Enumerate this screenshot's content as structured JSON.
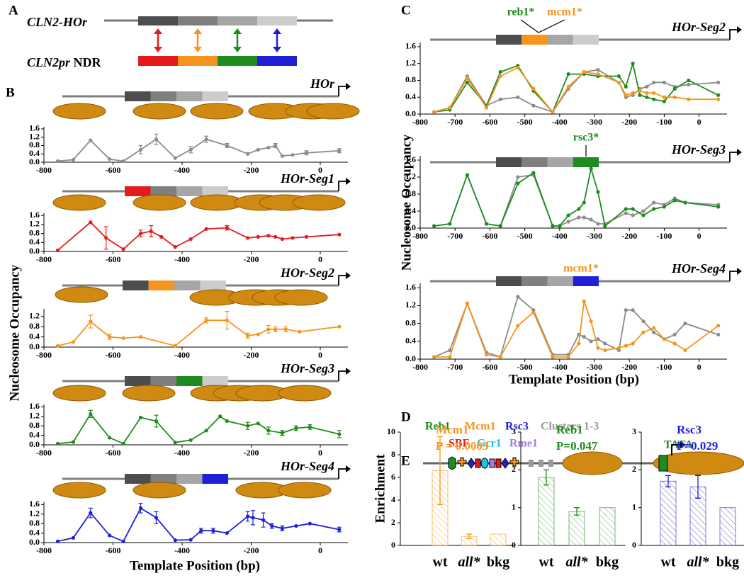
{
  "panel_labels": [
    "A",
    "B",
    "C",
    "D",
    "E"
  ],
  "panel_a": {
    "top_label": "CLN2-HOr",
    "bottom_label_italic": "CLN2pr",
    "bottom_label": "NDR"
  },
  "panel_b": {
    "ylabel": "Nucleosome Occupancy",
    "xlabel": "Template Position (bp)"
  },
  "panel_c": {
    "ylabel": "Nucleosome Occupancy",
    "xlabel": "Template Position (bp)"
  },
  "panel_d": {
    "factors": [
      {
        "text": "Reb1",
        "color": "#1e8c1e"
      },
      {
        "text": "Mcm1",
        "color": "#f7941d"
      },
      {
        "text": "Rsc3",
        "color": "#1f1fd6"
      },
      {
        "text": "Clusters 1-3",
        "color": "#999999"
      },
      {
        "text": "SBF",
        "color": "#e41a1c"
      },
      {
        "text": "Gcr1",
        "color": "#19c3e6"
      },
      {
        "text": "Rme1",
        "color": "#a07de0"
      }
    ],
    "tata": "TATA"
  },
  "chart_data": [
    {
      "type": "line",
      "title": "HOr",
      "replaced_color": null,
      "xlim": [
        -800,
        80
      ],
      "ylim": [
        0,
        1.7
      ],
      "xticks": [
        -800,
        -600,
        -400,
        -200,
        0
      ],
      "yticks": [
        {
          "value": 0,
          "label": "0.0"
        },
        0.4,
        0.8,
        1.2,
        1.6
      ],
      "x": [
        -760,
        -715,
        -665,
        -610,
        -570,
        -520,
        -475,
        -420,
        -375,
        -330,
        -270,
        -210,
        -180,
        -150,
        -130,
        -110,
        -80,
        -40,
        55
      ],
      "series": [
        {
          "color": "#8c8c8c",
          "values": [
            0.05,
            0.12,
            1.05,
            0.15,
            0.05,
            0.6,
            1.1,
            0.2,
            0.6,
            1.1,
            0.8,
            0.4,
            0.6,
            0.7,
            0.8,
            0.3,
            0.35,
            0.45,
            0.55
          ],
          "errors": [
            null,
            null,
            null,
            null,
            null,
            0.2,
            0.25,
            null,
            0.15,
            0.15,
            0.1,
            null,
            null,
            null,
            0.1,
            null,
            null,
            0.1,
            0.1
          ]
        }
      ]
    },
    {
      "type": "line",
      "title": "HOr-Seg1",
      "replaced_color": "#e41a1c",
      "xlim": [
        -800,
        80
      ],
      "ylim": [
        0,
        1.7
      ],
      "xticks": [
        -800,
        -600,
        -400,
        -200,
        0
      ],
      "yticks": [
        {
          "value": 0,
          "label": "0.0"
        },
        0.4,
        0.8,
        1.2,
        1.6
      ],
      "x": [
        -760,
        -665,
        -620,
        -570,
        -520,
        -490,
        -460,
        -420,
        -375,
        -330,
        -270,
        -210,
        -180,
        -150,
        -130,
        -110,
        -80,
        -40,
        55
      ],
      "series": [
        {
          "color": "#e41a1c",
          "values": [
            0.05,
            1.3,
            0.6,
            0.1,
            0.8,
            0.9,
            0.65,
            0.2,
            0.55,
            1.0,
            1.05,
            0.6,
            0.65,
            0.7,
            0.65,
            0.55,
            0.6,
            0.65,
            0.75
          ],
          "errors": [
            null,
            null,
            0.5,
            null,
            0.15,
            0.25,
            null,
            null,
            null,
            null,
            0.1,
            null,
            null,
            null,
            null,
            null,
            null,
            null,
            null
          ]
        }
      ]
    },
    {
      "type": "line",
      "title": "HOr-Seg2",
      "replaced_color": "#f7941d",
      "xlim": [
        -800,
        80
      ],
      "ylim": [
        0,
        1.5
      ],
      "xticks": [
        -800,
        -600,
        -400,
        -200,
        0
      ],
      "yticks": [
        {
          "value": 0,
          "label": "0.0"
        },
        0.4,
        0.8,
        1.2
      ],
      "x": [
        -760,
        -715,
        -665,
        -610,
        -570,
        -520,
        -420,
        -330,
        -270,
        -210,
        -180,
        -150,
        -130,
        -100,
        -60,
        55
      ],
      "series": [
        {
          "color": "#f7941d",
          "values": [
            0.05,
            0.2,
            1.0,
            0.4,
            0.35,
            0.4,
            0.05,
            1.05,
            1.05,
            0.45,
            0.5,
            0.7,
            0.7,
            0.7,
            0.6,
            0.8
          ],
          "errors": [
            null,
            null,
            0.25,
            0.1,
            null,
            null,
            null,
            0.1,
            0.35,
            0.1,
            null,
            0.15,
            0.1,
            0.1,
            null,
            null
          ]
        }
      ]
    },
    {
      "type": "line",
      "title": "HOr-Seg3",
      "replaced_color": "#1e8c1e",
      "xlim": [
        -800,
        80
      ],
      "ylim": [
        0,
        1.7
      ],
      "xticks": [
        -800,
        -600,
        -400,
        -200,
        0
      ],
      "yticks": [
        {
          "value": 0,
          "label": "0.0"
        },
        0.4,
        0.8,
        1.2,
        1.6
      ],
      "x": [
        -760,
        -715,
        -665,
        -610,
        -570,
        -520,
        -475,
        -420,
        -375,
        -330,
        -290,
        -270,
        -210,
        -180,
        -150,
        -110,
        -70,
        -30,
        55
      ],
      "series": [
        {
          "color": "#1e8c1e",
          "values": [
            0.05,
            0.12,
            1.3,
            0.3,
            0.05,
            1.15,
            1.0,
            0.1,
            0.2,
            0.6,
            1.2,
            1.0,
            0.8,
            0.9,
            0.6,
            0.5,
            0.7,
            0.75,
            0.45
          ],
          "errors": [
            null,
            null,
            0.15,
            null,
            null,
            null,
            0.25,
            null,
            null,
            null,
            null,
            null,
            0.15,
            null,
            0.15,
            0.1,
            0.1,
            0.1,
            0.15
          ]
        }
      ]
    },
    {
      "type": "line",
      "title": "HOr-Seg4",
      "replaced_color": "#1f1fd6",
      "xlim": [
        -800,
        80
      ],
      "ylim": [
        0,
        1.7
      ],
      "xticks": [
        -800,
        -600,
        -400,
        -200,
        0
      ],
      "yticks": [
        {
          "value": 0,
          "label": "0.0"
        },
        0.4,
        0.8,
        1.2,
        1.6
      ],
      "x": [
        -760,
        -715,
        -665,
        -610,
        -570,
        -520,
        -475,
        -420,
        -375,
        -345,
        -310,
        -270,
        -210,
        -195,
        -165,
        -140,
        -110,
        -70,
        -30,
        55
      ],
      "series": [
        {
          "color": "#1f1fd6",
          "values": [
            0.05,
            0.2,
            1.25,
            0.3,
            0.05,
            1.45,
            1.05,
            0.1,
            0.12,
            0.5,
            0.5,
            0.4,
            1.1,
            1.05,
            0.95,
            0.7,
            0.6,
            0.7,
            0.8,
            0.55
          ],
          "errors": [
            null,
            null,
            0.2,
            null,
            null,
            0.2,
            0.25,
            null,
            null,
            0.1,
            0.1,
            null,
            0.2,
            0.3,
            0.3,
            0.1,
            0.1,
            null,
            null,
            0.1
          ]
        }
      ]
    },
    {
      "type": "line",
      "title": "HOr-Seg2",
      "replaced_color": "#f7941d",
      "annotations": [
        {
          "text": "reb1*",
          "color": "#1e8c1e"
        },
        {
          "text": "mcm1*",
          "color": "#f7941d"
        }
      ],
      "xlim": [
        -800,
        80
      ],
      "ylim": [
        0,
        1.7
      ],
      "xticks": [
        -800,
        -700,
        -600,
        -500,
        -400,
        -300,
        -200,
        -100,
        0
      ],
      "yticks": [
        {
          "value": 0,
          "label": "0.0"
        },
        0.4,
        0.8,
        1.2,
        1.6
      ],
      "x": [
        -760,
        -715,
        -665,
        -610,
        -570,
        -520,
        -475,
        -420,
        -375,
        -330,
        -290,
        -230,
        -210,
        -190,
        -170,
        -150,
        -130,
        -100,
        -70,
        -30,
        55
      ],
      "series": [
        {
          "color": "#8c8c8c",
          "values": [
            0.05,
            0.15,
            0.9,
            0.2,
            0.35,
            0.4,
            0.2,
            0.05,
            0.6,
            1.0,
            1.05,
            0.75,
            0.4,
            0.45,
            0.6,
            0.65,
            0.75,
            0.75,
            0.65,
            0.7,
            0.75
          ]
        },
        {
          "color": "#1e8c1e",
          "values": [
            0.05,
            0.1,
            0.75,
            0.2,
            1.0,
            1.15,
            0.55,
            0.05,
            0.95,
            0.95,
            0.9,
            0.9,
            0.65,
            1.2,
            0.45,
            0.4,
            0.35,
            0.3,
            0.6,
            0.8,
            0.45
          ]
        },
        {
          "color": "#f7941d",
          "values": [
            0.05,
            0.15,
            0.85,
            0.15,
            0.9,
            1.1,
            0.6,
            0.05,
            0.65,
            1.0,
            0.95,
            0.75,
            0.45,
            0.5,
            0.55,
            0.5,
            0.5,
            0.4,
            0.4,
            0.35,
            0.35
          ]
        }
      ]
    },
    {
      "type": "line",
      "title": "HOr-Seg3",
      "replaced_color": "#1e8c1e",
      "annotations": [
        {
          "text": "rsc3*",
          "color": "#1e8c1e"
        }
      ],
      "xlim": [
        -800,
        80
      ],
      "ylim": [
        0,
        1.7
      ],
      "xticks": [
        -800,
        -700,
        -600,
        -500,
        -400,
        -300,
        -200,
        -100,
        0
      ],
      "yticks": [
        {
          "value": 0,
          "label": "0.0"
        },
        0.4,
        0.8,
        1.2,
        1.6
      ],
      "x": [
        -760,
        -715,
        -665,
        -610,
        -570,
        -520,
        -475,
        -420,
        -400,
        -375,
        -345,
        -330,
        -310,
        -290,
        -270,
        -210,
        -190,
        -160,
        -130,
        -100,
        -70,
        -40,
        55
      ],
      "series": [
        {
          "color": "#8c8c8c",
          "values": [
            0.05,
            0.1,
            1.25,
            0.1,
            0.05,
            1.2,
            1.25,
            0.05,
            0.05,
            0.15,
            0.25,
            0.25,
            0.2,
            0.1,
            0.1,
            0.35,
            0.3,
            0.4,
            0.6,
            0.55,
            0.7,
            0.6,
            0.55
          ]
        },
        {
          "color": "#1e8c1e",
          "values": [
            0.05,
            0.1,
            1.25,
            0.1,
            0.05,
            1.05,
            1.3,
            0.05,
            0.05,
            0.3,
            0.45,
            0.6,
            1.4,
            0.85,
            0.05,
            0.45,
            0.45,
            0.3,
            0.45,
            0.5,
            0.65,
            0.6,
            0.5
          ]
        }
      ]
    },
    {
      "type": "line",
      "title": "HOr-Seg4",
      "replaced_color": "#1f1fd6",
      "annotations": [
        {
          "text": "mcm1*",
          "color": "#f7941d"
        }
      ],
      "xlim": [
        -800,
        80
      ],
      "ylim": [
        0,
        1.7
      ],
      "xticks": [
        -800,
        -700,
        -600,
        -500,
        -400,
        -300,
        -200,
        -100,
        0
      ],
      "yticks": [
        {
          "value": 0,
          "label": "0.0"
        },
        0.4,
        0.8,
        1.2,
        1.6
      ],
      "x": [
        -760,
        -715,
        -665,
        -610,
        -570,
        -520,
        -475,
        -420,
        -375,
        -345,
        -330,
        -310,
        -290,
        -270,
        -230,
        -210,
        -190,
        -160,
        -130,
        -100,
        -70,
        -40,
        55
      ],
      "series": [
        {
          "color": "#8c8c8c",
          "values": [
            0.05,
            0.2,
            1.25,
            0.15,
            0.05,
            1.4,
            1.1,
            0.1,
            0.1,
            0.55,
            0.5,
            0.4,
            0.45,
            0.35,
            0.2,
            1.1,
            1.1,
            0.85,
            0.6,
            0.45,
            0.55,
            0.8,
            0.55
          ]
        },
        {
          "color": "#f7941d",
          "values": [
            0.05,
            0.05,
            1.25,
            0.1,
            0.05,
            0.75,
            1.05,
            0.05,
            0.05,
            0.35,
            1.3,
            0.85,
            0.25,
            0.2,
            0.25,
            0.3,
            0.35,
            0.6,
            0.7,
            0.45,
            0.35,
            0.2,
            0.75
          ]
        }
      ]
    },
    {
      "type": "bar",
      "title": "Mcm1",
      "subtitle": "P = 0.0003",
      "ylabel": "Enrichment",
      "color": "#f7941d",
      "categories": [
        "wt",
        "all*",
        "bkg"
      ],
      "values": [
        6.6,
        0.8,
        1.0
      ],
      "errors": [
        3.0,
        0.2,
        null
      ],
      "ylim": [
        0,
        10
      ],
      "yticks": [
        0,
        2,
        4,
        6,
        8,
        10
      ]
    },
    {
      "type": "bar",
      "title": "Reb1",
      "subtitle": "P=0.047",
      "color": "#1e8c1e",
      "categories": [
        "wt",
        "all*",
        "bkg"
      ],
      "values": [
        1.8,
        0.9,
        1.0
      ],
      "errors": [
        0.2,
        0.1,
        null
      ],
      "ylim": [
        0,
        3
      ],
      "yticks": [
        0,
        1,
        2,
        3
      ]
    },
    {
      "type": "bar",
      "title": "Rsc3",
      "subtitle": "P=0.029",
      "color": "#1f1fd6",
      "categories": [
        "wt",
        "all*",
        "bkg"
      ],
      "values": [
        1.7,
        1.55,
        1.0
      ],
      "errors": [
        0.15,
        0.3,
        null
      ],
      "ylim": [
        0,
        3
      ],
      "yticks": [
        0,
        1,
        2,
        3
      ]
    }
  ]
}
